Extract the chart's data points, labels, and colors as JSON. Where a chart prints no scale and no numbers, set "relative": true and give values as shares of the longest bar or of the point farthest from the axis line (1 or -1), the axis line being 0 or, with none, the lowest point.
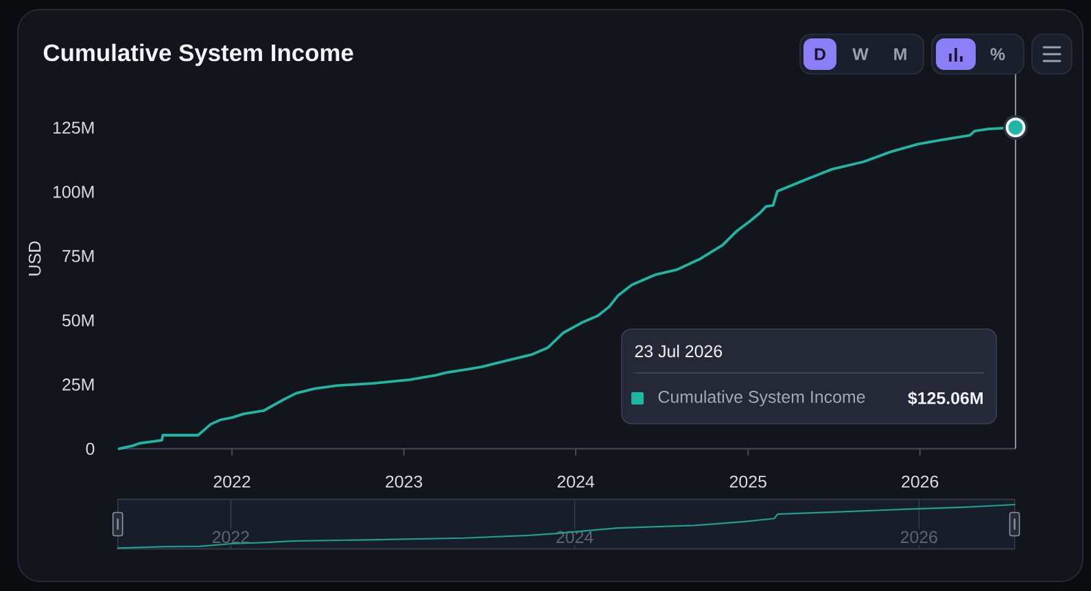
{
  "chart_data": [
    {
      "type": "line",
      "title": "Cumulative System Income",
      "ylabel": "USD",
      "x": [
        "2021-05-06",
        "2021-06-04",
        "2021-06-18",
        "2021-08-05",
        "2021-08-07",
        "2021-10-21",
        "2021-11-17",
        "2021-12-08",
        "2022-01-02",
        "2022-01-26",
        "2022-03-10",
        "2022-04-18",
        "2022-05-17",
        "2022-06-25",
        "2022-08-12",
        "2022-10-28",
        "2023-01-13",
        "2023-03-11",
        "2023-03-31",
        "2023-05-18",
        "2023-06-15",
        "2023-07-05",
        "2023-09-01",
        "2023-09-30",
        "2023-11-03",
        "2023-12-06",
        "2024-01-14",
        "2024-02-17",
        "2024-03-12",
        "2024-03-31",
        "2024-04-29",
        "2024-06-17",
        "2024-08-04",
        "2024-09-21",
        "2024-11-08",
        "2024-12-07",
        "2025-01-05",
        "2025-01-25",
        "2025-02-08",
        "2025-02-23",
        "2025-03-04",
        "2025-05-01",
        "2025-06-28",
        "2025-09-03",
        "2025-10-31",
        "2025-12-28",
        "2026-02-24",
        "2026-04-17",
        "2026-04-27",
        "2026-05-26",
        "2026-07-23"
      ],
      "series": [
        {
          "name": "Cumulative System Income",
          "color": "#1fb6a3",
          "values": [
            0,
            1.2,
            2.1,
            3.3,
            5.3,
            5.3,
            9.6,
            11.3,
            12.2,
            13.6,
            14.9,
            18.9,
            21.6,
            23.4,
            24.6,
            25.5,
            26.9,
            28.7,
            29.6,
            31.0,
            31.9,
            32.8,
            35.4,
            36.7,
            39.4,
            45.2,
            49.1,
            51.8,
            55.3,
            59.7,
            63.8,
            67.7,
            69.8,
            73.9,
            79.3,
            84.6,
            88.6,
            91.6,
            94.3,
            94.7,
            100.2,
            104.6,
            108.8,
            111.7,
            115.6,
            118.6,
            120.5,
            122.0,
            123.7,
            124.5,
            125.06
          ]
        }
      ],
      "xlim": [
        "2021-05-06",
        "2026-07-23"
      ],
      "ylim": [
        0,
        148
      ],
      "xticks": [
        "2022",
        "2023",
        "2024",
        "2025",
        "2026"
      ],
      "yticks": [
        0,
        {
          "value": 25,
          "label": "25M"
        },
        {
          "value": 50,
          "label": "50M"
        },
        {
          "value": 75,
          "label": "75M"
        },
        {
          "value": 100,
          "label": "100M"
        },
        {
          "value": 125,
          "label": "125M"
        }
      ],
      "ref_lines": [
        {
          "axis": "x",
          "value": "2026-07-23",
          "color": "#8d93a1"
        }
      ],
      "legend": "bottom right",
      "annotations": [
        "23 Jul 2026",
        "$125.06M",
        "D",
        "W",
        "M",
        "%"
      ]
    },
    {
      "type": "line",
      "relative": true,
      "tick_labels": "x",
      "grid": "x",
      "x": [
        "2021-05-06",
        "2021-08-12",
        "2021-10-26",
        "2022-01-03",
        "2022-03-18",
        "2022-05-11",
        "2022-10-21",
        "2023-05-12",
        "2023-09-25",
        "2023-11-18",
        "2024-02-07",
        "2024-04-01",
        "2024-09-11",
        "2024-12-29",
        "2025-02-28",
        "2025-03-07",
        "2025-08-03",
        "2025-12-17",
        "2026-04-04",
        "2026-07-23"
      ],
      "series": [
        {
          "color": "#1e9f8f",
          "values": [
            0,
            0.03,
            0.04,
            0.1,
            0.13,
            0.16,
            0.19,
            0.23,
            0.29,
            0.33,
            0.41,
            0.46,
            0.52,
            0.61,
            0.68,
            0.78,
            0.84,
            0.9,
            0.94,
            1
          ]
        }
      ],
      "xlim": [
        "2021-05-06",
        "2026-07-23"
      ],
      "xticks": [
        "2022",
        "2024",
        "2026"
      ]
    }
  ]
}
